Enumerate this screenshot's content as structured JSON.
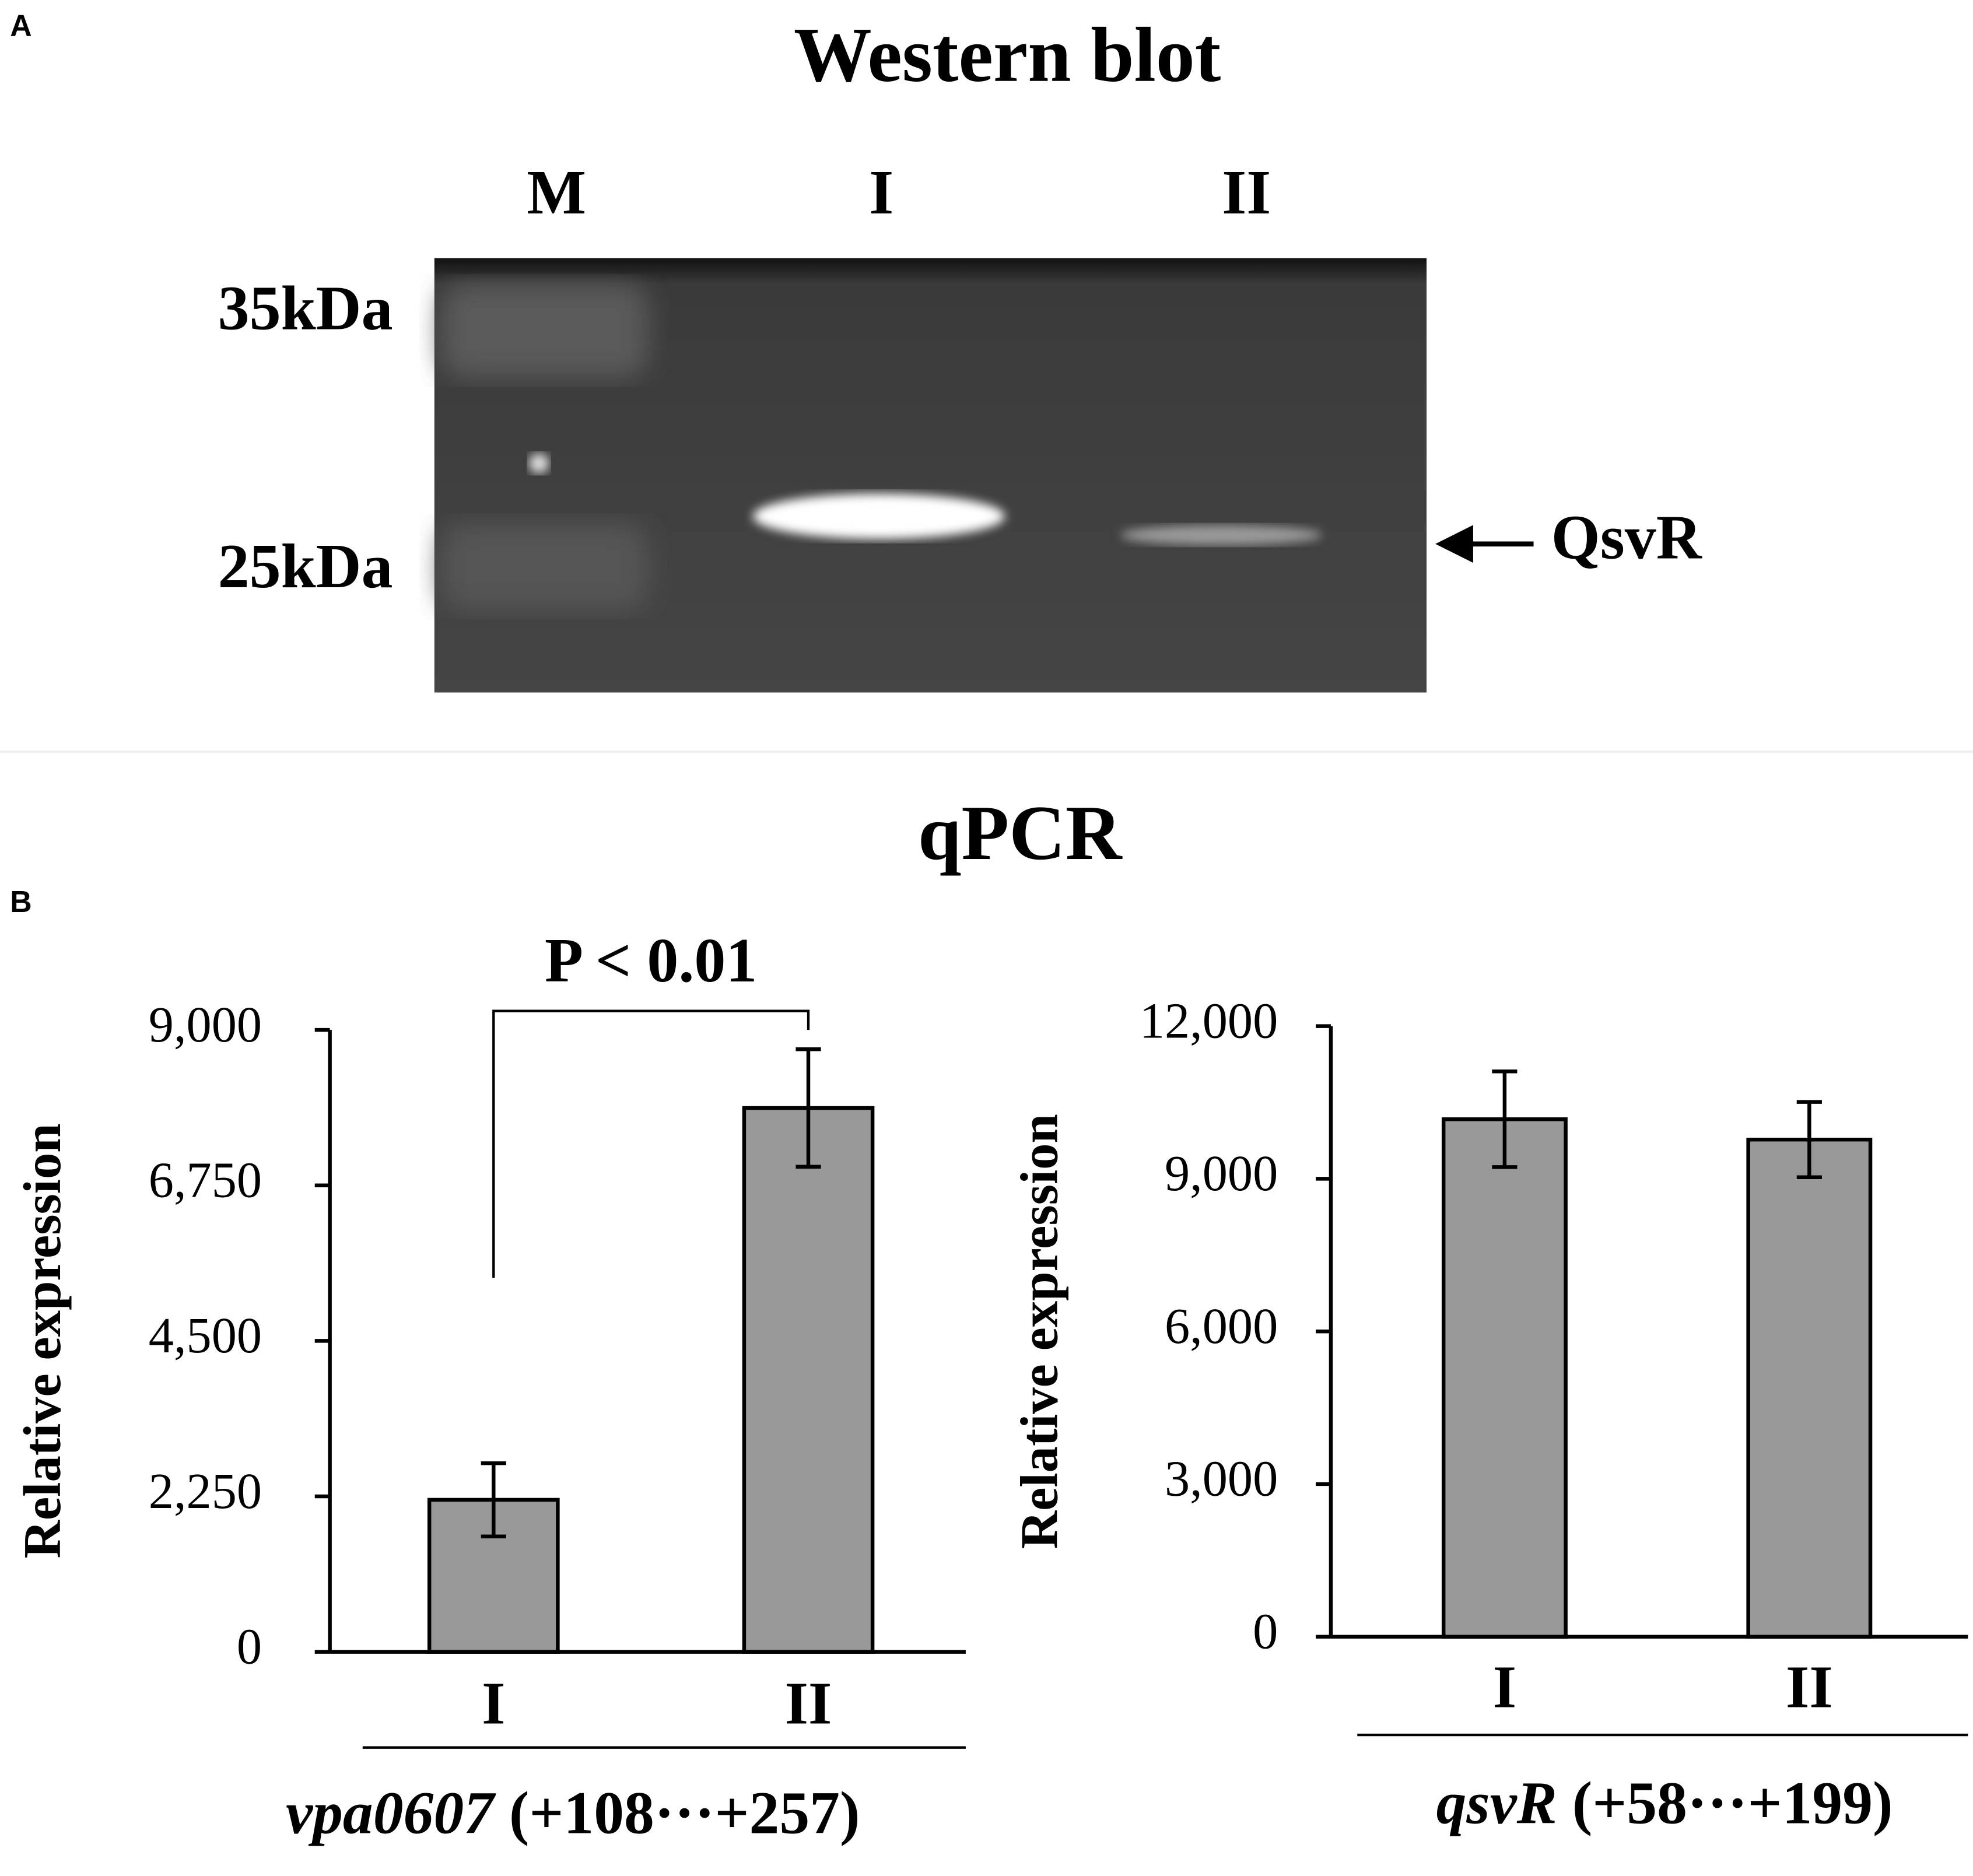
{
  "panel_a": {
    "label": "A",
    "title": "Western blot",
    "lanes": [
      "M",
      "I",
      "II"
    ],
    "markers": [
      "35kDa",
      "25kDa"
    ],
    "band_label": "QsvR"
  },
  "panel_b": {
    "label": "B",
    "title": "qPCR"
  },
  "chart_data": [
    {
      "type": "bar",
      "categories": [
        "I",
        "II"
      ],
      "values": [
        2200,
        7870
      ],
      "errors": [
        530,
        850
      ],
      "color": "#999999",
      "ylabel": "Relative expression",
      "x_label": {
        "gene": "vpa0607",
        "region": "(+108···+257)"
      },
      "annotation": "P < 0.01",
      "ylim": [
        0,
        9000
      ],
      "yticks": [
        0,
        {
          "value": 2250,
          "label": "2,250"
        },
        {
          "value": 4500,
          "label": "4,500"
        },
        {
          "value": 6750,
          "label": "6,750"
        },
        {
          "value": 9000,
          "label": "9,000"
        }
      ]
    },
    {
      "type": "bar",
      "categories": [
        "I",
        "II"
      ],
      "values": [
        10170,
        9770
      ],
      "errors": [
        940,
        740
      ],
      "color": "#999999",
      "ylabel": "Relative expression",
      "x_label": {
        "gene": "qsvR",
        "region": "(+58···+199)"
      },
      "ylim": [
        0,
        12000
      ],
      "yticks": [
        0,
        {
          "value": 3000,
          "label": "3,000"
        },
        {
          "value": 6000,
          "label": "6,000"
        },
        {
          "value": 9000,
          "label": "9,000"
        },
        {
          "value": 12000,
          "label": "12,000"
        }
      ]
    }
  ]
}
